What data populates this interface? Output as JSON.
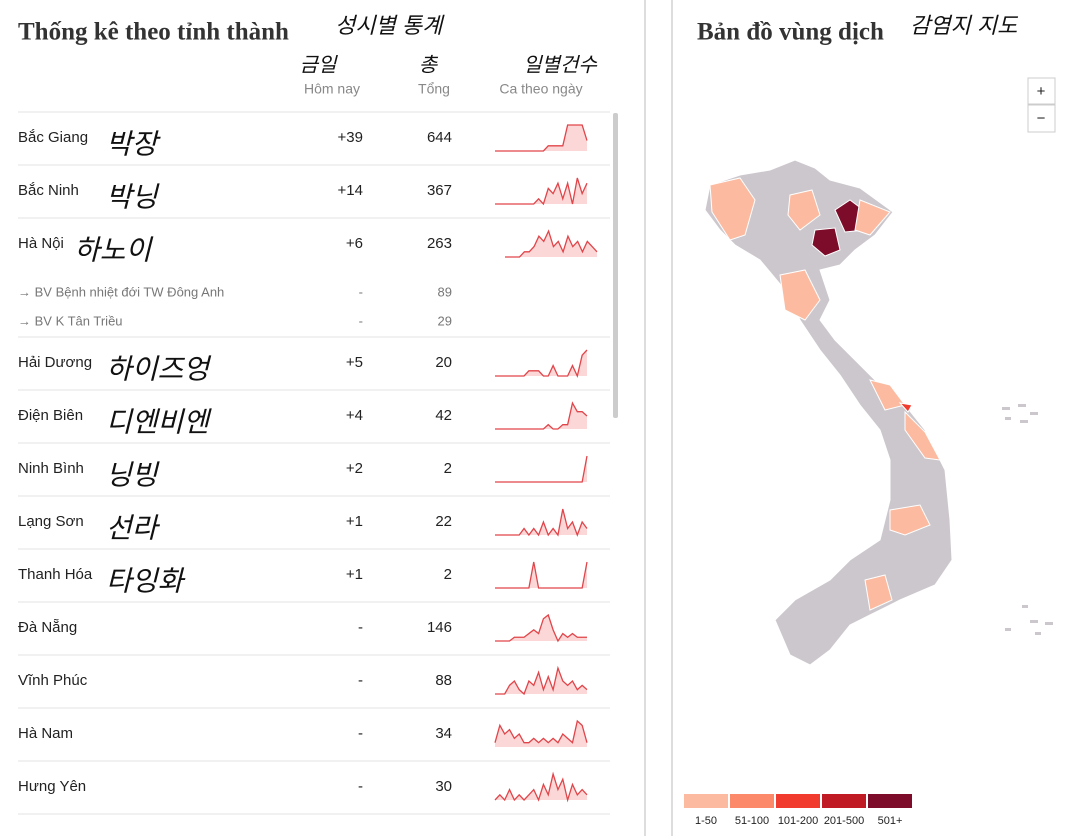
{
  "left": {
    "title": "Thống kê theo tỉnh thành",
    "title_note": "성시별 통계",
    "headers": [
      {
        "note": "금일",
        "label": "Hôm nay"
      },
      {
        "note": "총",
        "label": "Tổng"
      },
      {
        "note": "일별건수",
        "label": "Ca theo ngày"
      }
    ],
    "rows": [
      {
        "name": "Bắc Giang",
        "note": "박장",
        "today": "+39",
        "total": 644,
        "trend": [
          0,
          0,
          0,
          0,
          0,
          0,
          0,
          0,
          0,
          0,
          0,
          1,
          1,
          1,
          1,
          5,
          5,
          5,
          5,
          2
        ]
      },
      {
        "name": "Bắc Ninh",
        "note": "박닝",
        "today": "+14",
        "total": 367,
        "trend": [
          0,
          0,
          0,
          0,
          0,
          0,
          0,
          0,
          0,
          1,
          0,
          3,
          2,
          4,
          1,
          4,
          0,
          5,
          2,
          4
        ]
      },
      {
        "name": "Hà Nội",
        "note": "하노이",
        "today": "+6",
        "total": 263,
        "trend": [
          0,
          0,
          0,
          0,
          1,
          1,
          2,
          4,
          3,
          5,
          2,
          3,
          1,
          4,
          2,
          3,
          1,
          3,
          2,
          1
        ]
      },
      {
        "name": "→ BV Bệnh nhiệt đới TW Đông Anh",
        "today": "-",
        "total": 89
      },
      {
        "name": "→ BV K Tân Triều",
        "today": "-",
        "total": 29
      },
      {
        "name": "Hải Dương",
        "note": "하이즈엉",
        "today": "+5",
        "total": 20,
        "trend": [
          0,
          0,
          0,
          0,
          0,
          0,
          0,
          1,
          1,
          1,
          0,
          0,
          2,
          0,
          0,
          0,
          2,
          0,
          4,
          5
        ]
      },
      {
        "name": "Điện Biên",
        "note": "디엔비엔",
        "today": "+4",
        "total": 42,
        "trend": [
          0,
          0,
          0,
          0,
          0,
          0,
          0,
          0,
          0,
          0,
          0,
          1,
          0,
          0,
          1,
          1,
          6,
          4,
          4,
          3
        ]
      },
      {
        "name": "Ninh Bình",
        "note": "닝빙",
        "today": "+2",
        "total": 2,
        "trend": [
          0,
          0,
          0,
          0,
          0,
          0,
          0,
          0,
          0,
          0,
          0,
          0,
          0,
          0,
          0,
          0,
          0,
          0,
          0,
          2
        ]
      },
      {
        "name": "Lạng Sơn",
        "note": "선라",
        "today": "+1",
        "total": 22,
        "trend": [
          0,
          0,
          0,
          0,
          0,
          0,
          1,
          0,
          1,
          0,
          2,
          0,
          1,
          0,
          4,
          1,
          2,
          0,
          2,
          1
        ]
      },
      {
        "name": "Thanh Hóa",
        "note": "타잉화",
        "today": "+1",
        "total": 2,
        "trend": [
          0,
          0,
          0,
          0,
          0,
          0,
          0,
          0,
          1,
          0,
          0,
          0,
          0,
          0,
          0,
          0,
          0,
          0,
          0,
          1
        ]
      },
      {
        "name": "Đà Nẵng",
        "today": "-",
        "total": 146,
        "trend": [
          0,
          0,
          0,
          0,
          1,
          1,
          1,
          2,
          3,
          2,
          6,
          7,
          3,
          0,
          2,
          1,
          2,
          1,
          1,
          1
        ]
      },
      {
        "name": "Vĩnh Phúc",
        "today": "-",
        "total": 88,
        "trend": [
          0,
          0,
          0,
          2,
          3,
          1,
          0,
          3,
          2,
          5,
          1,
          4,
          1,
          6,
          3,
          2,
          3,
          1,
          2,
          1
        ]
      },
      {
        "name": "Hà Nam",
        "today": "-",
        "total": 34,
        "trend": [
          1,
          5,
          3,
          4,
          2,
          3,
          1,
          1,
          2,
          1,
          2,
          1,
          2,
          1,
          3,
          2,
          1,
          6,
          5,
          1
        ]
      },
      {
        "name": "Hưng Yên",
        "today": "-",
        "total": 30,
        "trend": [
          0,
          1,
          0,
          2,
          0,
          1,
          0,
          1,
          2,
          0,
          3,
          1,
          5,
          2,
          4,
          0,
          3,
          1,
          2,
          1
        ]
      }
    ]
  },
  "right": {
    "title": "Bản đồ vùng dịch",
    "title_note": "감염지 지도",
    "zoom_in": "+",
    "zoom_out": "−",
    "legend": [
      {
        "label": "1-50",
        "color": "#fcbba1"
      },
      {
        "label": "51-100",
        "color": "#fc8a6a"
      },
      {
        "label": "101-200",
        "color": "#f03b2e"
      },
      {
        "label": "201-500",
        "color": "#c01a24"
      },
      {
        "label": "501+",
        "color": "#7d0c2a"
      }
    ]
  }
}
